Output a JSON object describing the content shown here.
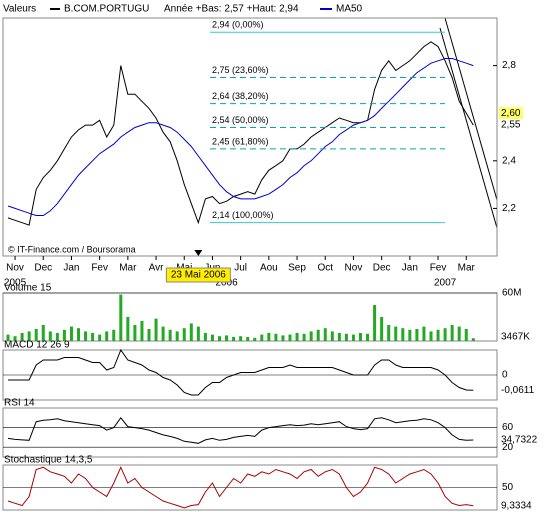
{
  "chart_data": [
    {
      "type": "line",
      "header": "Valeurs",
      "legend_extra": "Année +Bas: 2,57 +Haut: 2,94",
      "series": [
        {
          "name": "B.COM.PORTUGU",
          "color": "#000000",
          "values": [
            2.16,
            2.15,
            2.14,
            2.13,
            2.28,
            2.33,
            2.36,
            2.4,
            2.45,
            2.5,
            2.53,
            2.55,
            2.55,
            2.57,
            2.5,
            2.55,
            2.8,
            2.68,
            2.68,
            2.65,
            2.62,
            2.58,
            2.52,
            2.48,
            2.4,
            2.3,
            2.22,
            2.14,
            2.24,
            2.25,
            2.22,
            2.23,
            2.25,
            2.26,
            2.27,
            2.26,
            2.32,
            2.36,
            2.38,
            2.4,
            2.45,
            2.45,
            2.47,
            2.5,
            2.52,
            2.54,
            2.56,
            2.58,
            2.57,
            2.56,
            2.56,
            2.57,
            2.7,
            2.78,
            2.82,
            2.78,
            2.8,
            2.82,
            2.85,
            2.88,
            2.9,
            2.88,
            2.82,
            2.75,
            2.65,
            2.6,
            2.55
          ]
        },
        {
          "name": "MA50",
          "color": "#0000cc",
          "values": [
            2.21,
            2.2,
            2.19,
            2.18,
            2.17,
            2.17,
            2.19,
            2.22,
            2.26,
            2.3,
            2.34,
            2.37,
            2.4,
            2.43,
            2.45,
            2.47,
            2.5,
            2.52,
            2.54,
            2.55,
            2.56,
            2.56,
            2.55,
            2.54,
            2.52,
            2.49,
            2.46,
            2.42,
            2.38,
            2.34,
            2.3,
            2.27,
            2.25,
            2.24,
            2.24,
            2.24,
            2.25,
            2.26,
            2.28,
            2.3,
            2.33,
            2.35,
            2.38,
            2.4,
            2.43,
            2.46,
            2.48,
            2.51,
            2.53,
            2.55,
            2.56,
            2.57,
            2.59,
            2.62,
            2.65,
            2.68,
            2.71,
            2.74,
            2.77,
            2.79,
            2.81,
            2.82,
            2.83,
            2.83,
            2.82,
            2.81,
            2.8
          ]
        }
      ],
      "ylim": [
        2.0,
        3.0
      ],
      "yticks": [
        {
          "value": 2.2,
          "label": "2,2"
        },
        {
          "value": 2.4,
          "label": "2,4"
        },
        {
          "value": 2.8,
          "label": "2,8"
        }
      ],
      "xticks": [
        {
          "value": 1,
          "label": "Nov"
        },
        {
          "value": 5,
          "label": "Dec"
        },
        {
          "value": 9,
          "label": "Jan"
        },
        {
          "value": 13,
          "label": "Fev"
        },
        {
          "value": 17,
          "label": "Mar"
        },
        {
          "value": 21,
          "label": "Avr"
        },
        {
          "value": 25,
          "label": "Mai"
        },
        {
          "value": 29,
          "label": "Jun"
        },
        {
          "value": 33,
          "label": "Jul"
        },
        {
          "value": 37,
          "label": "Aou"
        },
        {
          "value": 41,
          "label": "Sep"
        },
        {
          "value": 45,
          "label": "Oct"
        },
        {
          "value": 49,
          "label": "Nov"
        },
        {
          "value": 53,
          "label": "Dec"
        },
        {
          "value": 57,
          "label": "Jan"
        },
        {
          "value": 61,
          "label": "Fev"
        },
        {
          "value": 65,
          "label": "Mar"
        }
      ],
      "years": [
        {
          "value": 1,
          "label": "2005"
        },
        {
          "value": 31,
          "label": "2006"
        },
        {
          "value": 62,
          "label": "2007"
        }
      ],
      "highlight": {
        "value": 27,
        "label": "23 Mai 2006"
      },
      "fibonacci": [
        {
          "value": 2.94,
          "label": "2,94 (0,00%)"
        },
        {
          "value": 2.75,
          "label": "2,75 (23,60%)"
        },
        {
          "value": 2.64,
          "label": "2,64 (38,20%)"
        },
        {
          "value": 2.54,
          "label": "2,54 (50,00%)"
        },
        {
          "value": 2.45,
          "label": "2,45 (61,80%)"
        },
        {
          "value": 2.14,
          "label": "2,14 (100,00%)"
        }
      ],
      "markers": [
        {
          "value": 2.6,
          "label": "2,60"
        },
        {
          "value": 2.55,
          "label": "2,55"
        }
      ],
      "credit": "© IT-Finance.com / Boursorama"
    },
    {
      "type": "bar",
      "title": "Volume 15",
      "color": "#22aa22",
      "ylim": [
        0,
        60
      ],
      "yticks": [
        {
          "value": 60,
          "label": "60M"
        }
      ],
      "last_label": "3467K",
      "values": [
        8,
        6,
        10,
        12,
        15,
        20,
        12,
        10,
        14,
        18,
        16,
        12,
        10,
        8,
        12,
        14,
        58,
        30,
        20,
        25,
        15,
        28,
        18,
        14,
        12,
        16,
        22,
        18,
        10,
        8,
        6,
        7,
        5,
        6,
        5,
        4,
        8,
        10,
        9,
        7,
        8,
        10,
        9,
        12,
        14,
        16,
        12,
        10,
        9,
        8,
        10,
        9,
        45,
        30,
        20,
        18,
        16,
        14,
        15,
        18,
        12,
        14,
        16,
        20,
        18,
        15,
        3.467
      ]
    },
    {
      "type": "line",
      "title": "MACD 12 26 9",
      "color": "#000000",
      "ylim": [
        -0.1,
        0.1
      ],
      "yticks": [
        0
      ],
      "last_label": "-0,0611",
      "values": [
        -0.02,
        -0.02,
        -0.02,
        -0.02,
        0.04,
        0.06,
        0.06,
        0.06,
        0.07,
        0.07,
        0.07,
        0.06,
        0.05,
        0.05,
        0.02,
        0.03,
        0.1,
        0.06,
        0.05,
        0.04,
        0.02,
        0.01,
        -0.01,
        -0.02,
        -0.04,
        -0.07,
        -0.08,
        -0.08,
        -0.05,
        -0.03,
        -0.03,
        -0.01,
        0,
        0.01,
        0.01,
        0.01,
        0.02,
        0.03,
        0.03,
        0.03,
        0.04,
        0.03,
        0.03,
        0.03,
        0.03,
        0.03,
        0.03,
        0.02,
        0.01,
        0,
        0,
        0,
        0.04,
        0.06,
        0.06,
        0.04,
        0.03,
        0.03,
        0.03,
        0.03,
        0.03,
        0.02,
        0,
        -0.03,
        -0.05,
        -0.06,
        -0.0611
      ]
    },
    {
      "type": "line",
      "title": "RSI 14",
      "color": "#000000",
      "ylim": [
        0,
        100
      ],
      "yticks": [
        60,
        20
      ],
      "last_label": "34,7322",
      "values": [
        38,
        36,
        35,
        34,
        72,
        75,
        76,
        78,
        74,
        72,
        70,
        68,
        66,
        64,
        55,
        60,
        80,
        62,
        60,
        58,
        55,
        50,
        45,
        42,
        38,
        32,
        30,
        28,
        35,
        38,
        34,
        36,
        40,
        42,
        44,
        42,
        55,
        60,
        62,
        64,
        66,
        64,
        65,
        68,
        66,
        68,
        70,
        72,
        62,
        58,
        56,
        58,
        78,
        80,
        76,
        70,
        72,
        74,
        75,
        78,
        76,
        70,
        60,
        45,
        36,
        34,
        34.7322
      ]
    },
    {
      "type": "line",
      "title": "Stochastique 14,3,5",
      "color": "#aa0000",
      "ylim": [
        0,
        100
      ],
      "yticks": [
        50
      ],
      "last_label": "9,3334",
      "values": [
        20,
        15,
        10,
        30,
        90,
        95,
        85,
        80,
        75,
        60,
        80,
        70,
        50,
        40,
        30,
        60,
        95,
        60,
        70,
        50,
        40,
        30,
        20,
        15,
        10,
        5,
        10,
        12,
        40,
        60,
        30,
        50,
        70,
        60,
        80,
        75,
        85,
        80,
        90,
        85,
        80,
        70,
        85,
        90,
        75,
        85,
        90,
        80,
        50,
        30,
        40,
        60,
        95,
        90,
        80,
        60,
        70,
        80,
        85,
        90,
        80,
        60,
        30,
        15,
        10,
        12,
        9.3334
      ]
    }
  ]
}
